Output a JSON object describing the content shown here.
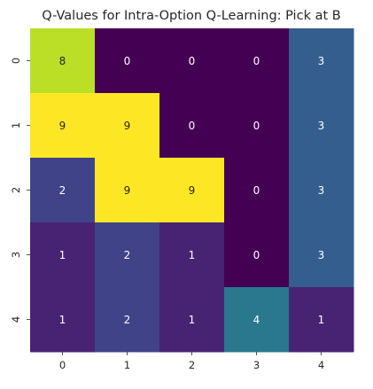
{
  "chart_data": {
    "type": "heatmap",
    "title": "Q-Values for Intra-Option Q-Learning: Pick at B",
    "x_tick_labels": [
      "0",
      "1",
      "2",
      "3",
      "4"
    ],
    "y_tick_labels": [
      "0",
      "1",
      "2",
      "3",
      "4"
    ],
    "xlabel": "",
    "ylabel": "",
    "values": [
      [
        8,
        0,
        0,
        0,
        3
      ],
      [
        9,
        9,
        0,
        0,
        3
      ],
      [
        2,
        9,
        9,
        0,
        3
      ],
      [
        1,
        2,
        1,
        0,
        3
      ],
      [
        1,
        2,
        1,
        4,
        1
      ]
    ],
    "value_range": [
      0,
      9
    ],
    "colormap": "viridis",
    "show_colorbar": false,
    "annotations": true,
    "annotation_colors": {
      "on_dark": "#ffffff",
      "on_light": "#262626"
    },
    "tick_color": "#262626"
  }
}
